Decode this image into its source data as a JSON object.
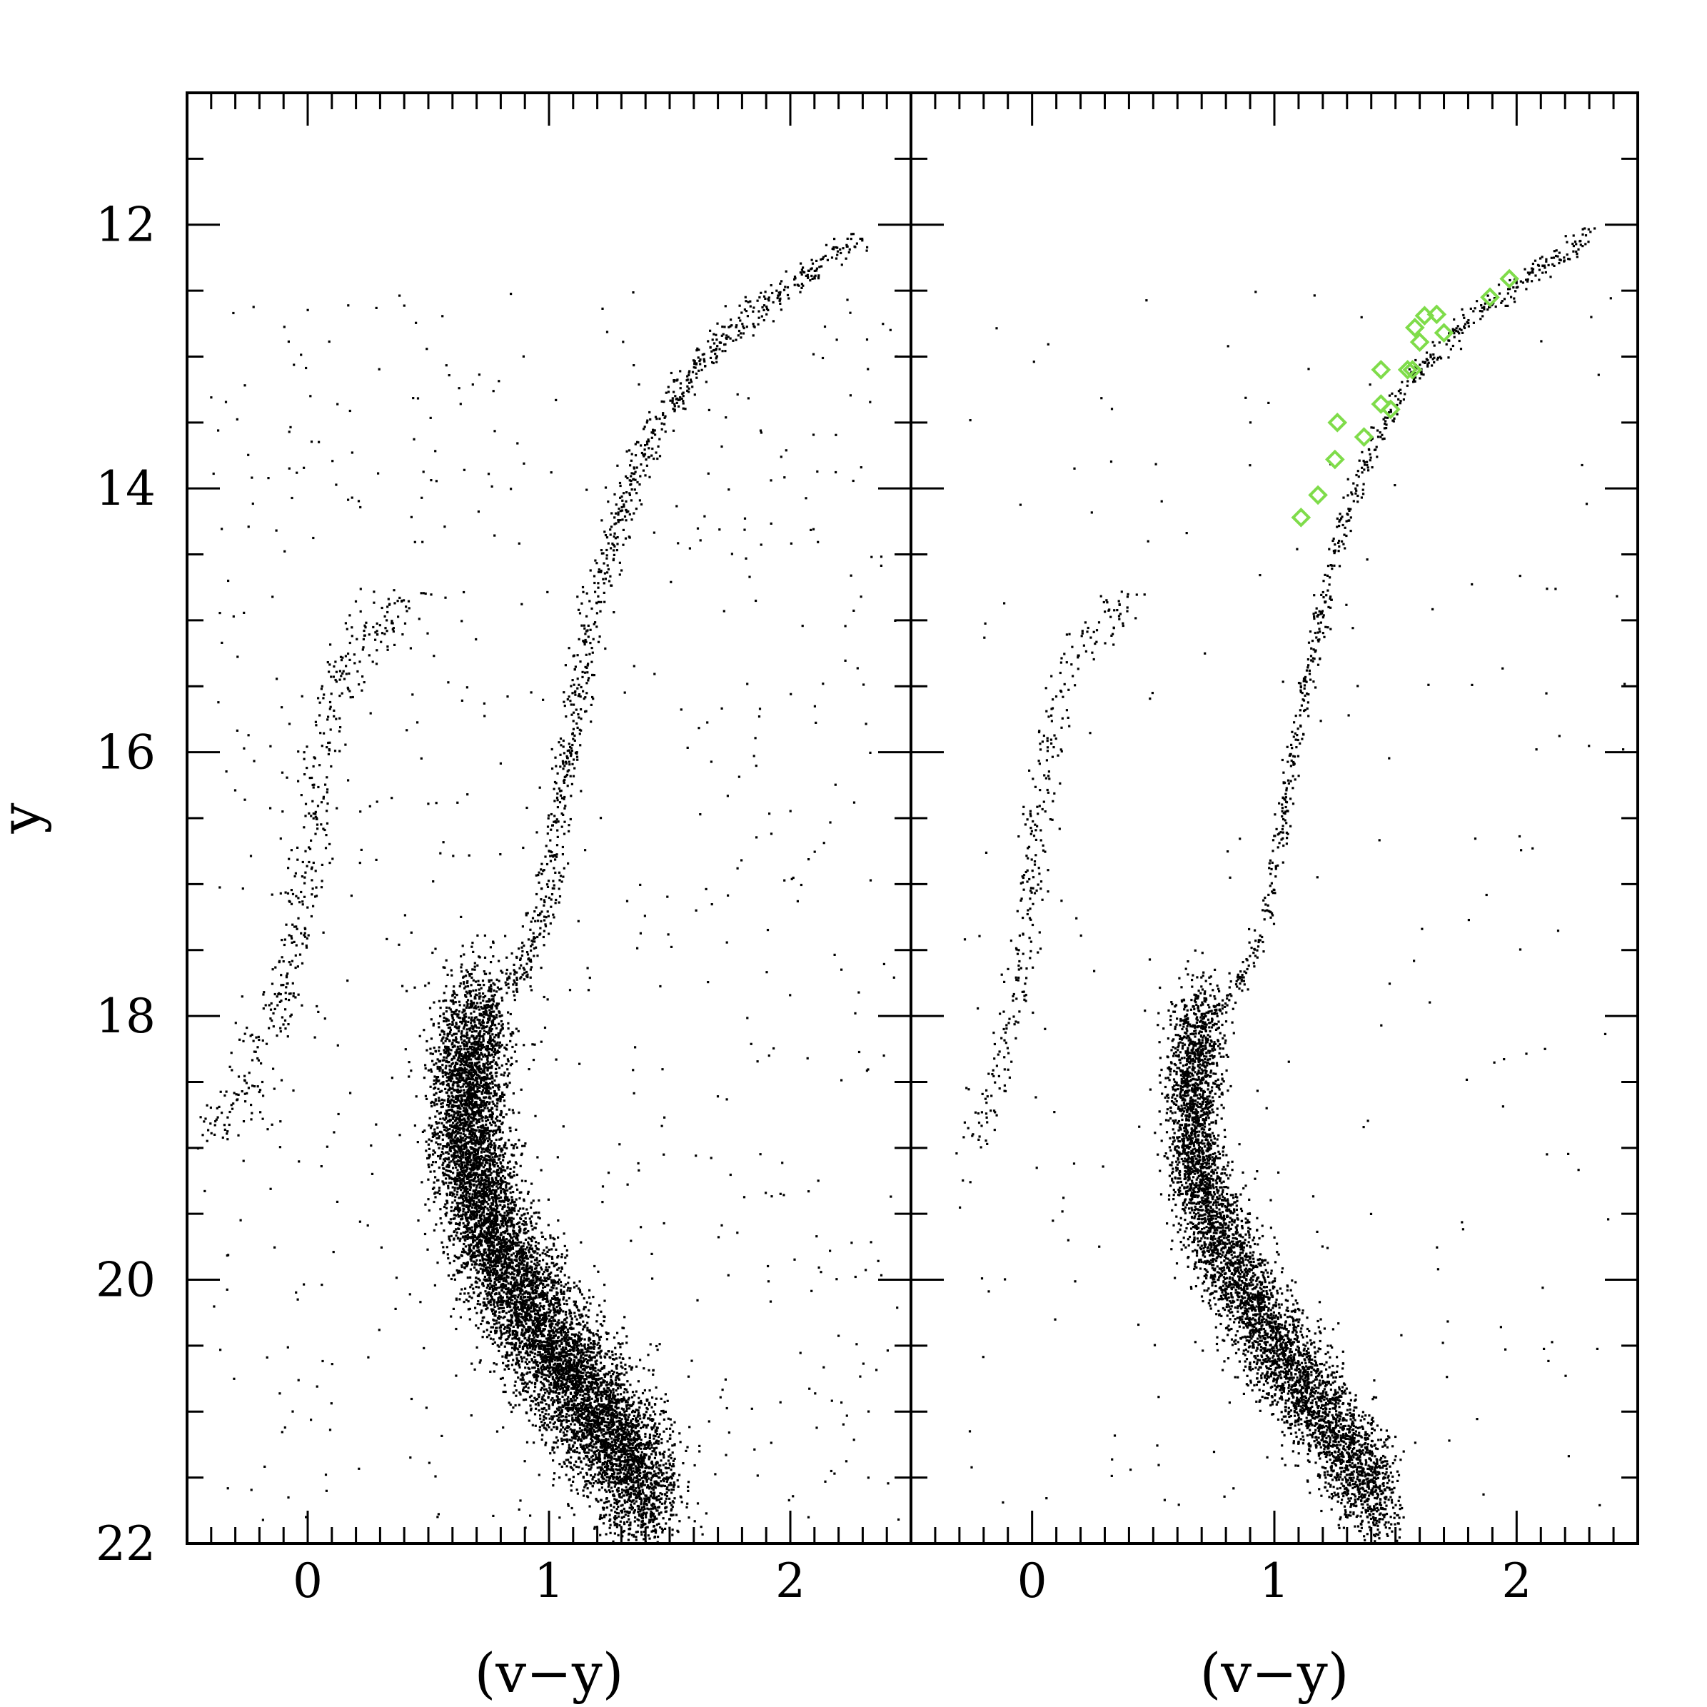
{
  "colors": {
    "points": "#000000",
    "highlight": "#7fdc4a",
    "background": "#ffffff"
  },
  "chart_data": [
    {
      "type": "scatter",
      "panel": "left",
      "xlabel": "(v−y)",
      "ylabel": "y",
      "xlim": [
        -0.5,
        2.5
      ],
      "ylim": [
        22,
        11
      ],
      "y_inverted": true,
      "x_ticks": [
        "0",
        "1",
        "2"
      ],
      "y_ticks": [
        "12",
        "14",
        "16",
        "18",
        "20",
        "22"
      ],
      "series": [
        {
          "marker": "dot",
          "color": "#000000",
          "components": [
            {
              "kind": "sequence",
              "path": [
                [
                  0.7,
                  18.0
                ],
                [
                  0.8,
                  17.9
                ],
                [
                  0.9,
                  17.6
                ],
                [
                  0.98,
                  17.2
                ],
                [
                  1.04,
                  16.5
                ],
                [
                  1.1,
                  15.8
                ],
                [
                  1.16,
                  15.2
                ],
                [
                  1.22,
                  14.7
                ],
                [
                  1.3,
                  14.2
                ],
                [
                  1.4,
                  13.7
                ],
                [
                  1.55,
                  13.2
                ],
                [
                  1.75,
                  12.8
                ],
                [
                  2.0,
                  12.45
                ],
                [
                  2.3,
                  12.08
                ]
              ],
              "n": 900,
              "spread_x": 0.03,
              "spread_y": 0.05
            },
            {
              "kind": "sequence",
              "path": [
                [
                  0.7,
                  18.0
                ],
                [
                  0.66,
                  18.5
                ],
                [
                  0.66,
                  19.0
                ],
                [
                  0.72,
                  19.5
                ],
                [
                  0.85,
                  20.0
                ],
                [
                  1.0,
                  20.5
                ],
                [
                  1.15,
                  20.9
                ],
                [
                  1.3,
                  21.3
                ],
                [
                  1.45,
                  21.7
                ]
              ],
              "n": 9000,
              "spread_x": 0.075,
              "spread_y": 0.28
            },
            {
              "kind": "sequence",
              "path": [
                [
                  -0.4,
                  18.9
                ],
                [
                  -0.25,
                  18.5
                ],
                [
                  -0.1,
                  17.8
                ],
                [
                  0.0,
                  16.9
                ],
                [
                  0.05,
                  16.2
                ],
                [
                  0.1,
                  15.6
                ],
                [
                  0.2,
                  15.2
                ],
                [
                  0.3,
                  15.0
                ],
                [
                  0.45,
                  14.8
                ]
              ],
              "n": 420,
              "spread_x": 0.04,
              "spread_y": 0.12
            },
            {
              "kind": "scatter",
              "x_range": [
                -0.4,
                2.45
              ],
              "y_range": [
                12.5,
                21.9
              ],
              "n": 650
            }
          ]
        }
      ]
    },
    {
      "type": "scatter",
      "panel": "right",
      "xlabel": "(v−y)",
      "ylabel": "",
      "xlim": [
        -0.5,
        2.5
      ],
      "ylim": [
        22,
        11
      ],
      "y_inverted": true,
      "x_ticks": [
        "0",
        "1",
        "2"
      ],
      "series": [
        {
          "marker": "dot",
          "color": "#000000",
          "components": [
            {
              "kind": "sequence",
              "path": [
                [
                  0.7,
                  18.0
                ],
                [
                  0.8,
                  17.9
                ],
                [
                  0.9,
                  17.6
                ],
                [
                  0.98,
                  17.2
                ],
                [
                  1.04,
                  16.5
                ],
                [
                  1.1,
                  15.8
                ],
                [
                  1.16,
                  15.2
                ],
                [
                  1.22,
                  14.7
                ],
                [
                  1.3,
                  14.2
                ],
                [
                  1.4,
                  13.7
                ],
                [
                  1.55,
                  13.2
                ],
                [
                  1.75,
                  12.8
                ],
                [
                  2.0,
                  12.45
                ],
                [
                  2.3,
                  12.08
                ]
              ],
              "n": 650,
              "spread_x": 0.018,
              "spread_y": 0.04
            },
            {
              "kind": "sequence",
              "path": [
                [
                  0.7,
                  18.0
                ],
                [
                  0.66,
                  18.5
                ],
                [
                  0.66,
                  19.0
                ],
                [
                  0.72,
                  19.5
                ],
                [
                  0.85,
                  20.0
                ],
                [
                  1.0,
                  20.5
                ],
                [
                  1.15,
                  20.9
                ],
                [
                  1.3,
                  21.3
                ],
                [
                  1.45,
                  21.7
                ]
              ],
              "n": 5200,
              "spread_x": 0.055,
              "spread_y": 0.22
            },
            {
              "kind": "sequence",
              "path": [
                [
                  -0.25,
                  19.0
                ],
                [
                  -0.15,
                  18.5
                ],
                [
                  -0.05,
                  17.8
                ],
                [
                  0.0,
                  16.9
                ],
                [
                  0.05,
                  16.2
                ],
                [
                  0.1,
                  15.6
                ],
                [
                  0.2,
                  15.2
                ],
                [
                  0.3,
                  15.0
                ],
                [
                  0.4,
                  14.9
                ]
              ],
              "n": 300,
              "spread_x": 0.03,
              "spread_y": 0.1
            },
            {
              "kind": "scatter",
              "x_range": [
                -0.3,
                2.45
              ],
              "y_range": [
                12.5,
                21.9
              ],
              "n": 200
            }
          ]
        },
        {
          "marker": "open-diamond",
          "color": "#7fdc4a",
          "points": [
            [
              1.11,
              14.22
            ],
            [
              1.18,
              14.05
            ],
            [
              1.25,
              13.78
            ],
            [
              1.26,
              13.5
            ],
            [
              1.37,
              13.61
            ],
            [
              1.44,
              13.1
            ],
            [
              1.44,
              13.36
            ],
            [
              1.48,
              13.4
            ],
            [
              1.55,
              13.1
            ],
            [
              1.57,
              13.1
            ],
            [
              1.58,
              12.78
            ],
            [
              1.6,
              12.89
            ],
            [
              1.62,
              12.69
            ],
            [
              1.67,
              12.68
            ],
            [
              1.7,
              12.82
            ],
            [
              1.89,
              12.55
            ],
            [
              1.97,
              12.41
            ]
          ]
        }
      ]
    }
  ]
}
